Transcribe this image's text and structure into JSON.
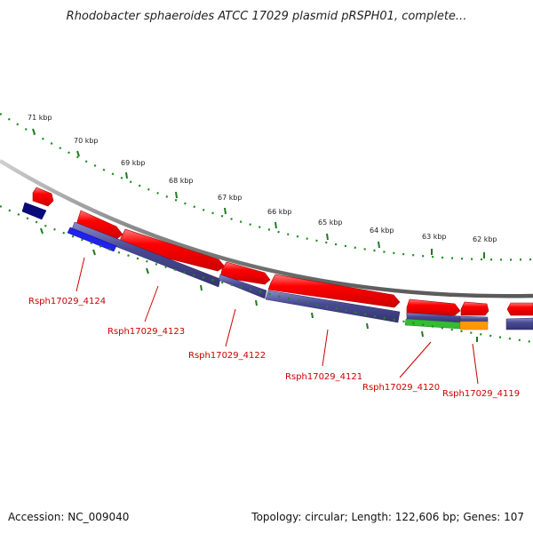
{
  "title": "Rhodobacter sphaeroides ATCC 17029 plasmid pRSPH01, complete...",
  "footer": {
    "accession": "Accession: NC_009040",
    "summary": "Topology: circular; Length: 122,606 bp; Genes: 107"
  },
  "kbp_marks": [
    "71 kbp",
    "70 kbp",
    "69 kbp",
    "68 kbp",
    "67 kbp",
    "66 kbp",
    "65 kbp",
    "64 kbp",
    "63 kbp",
    "62 kbp"
  ],
  "gene_labels": [
    "Rsph17029_4124",
    "Rsph17029_4123",
    "Rsph17029_4122",
    "Rsph17029_4121",
    "Rsph17029_4120",
    "Rsph17029_4119"
  ],
  "colors": {
    "forward_gene": "#ff0000",
    "cds_bar": "#4a4a96",
    "cds_dark": "#0a0a7a",
    "cds_blue": "#2222ee",
    "green_feature": "#33bb33",
    "orange_feature": "#ff9900",
    "tick_green": "#1f7a1f",
    "dot_green": "#1a8a1a",
    "backbone": "#888888",
    "label_red": "#cc0000"
  }
}
